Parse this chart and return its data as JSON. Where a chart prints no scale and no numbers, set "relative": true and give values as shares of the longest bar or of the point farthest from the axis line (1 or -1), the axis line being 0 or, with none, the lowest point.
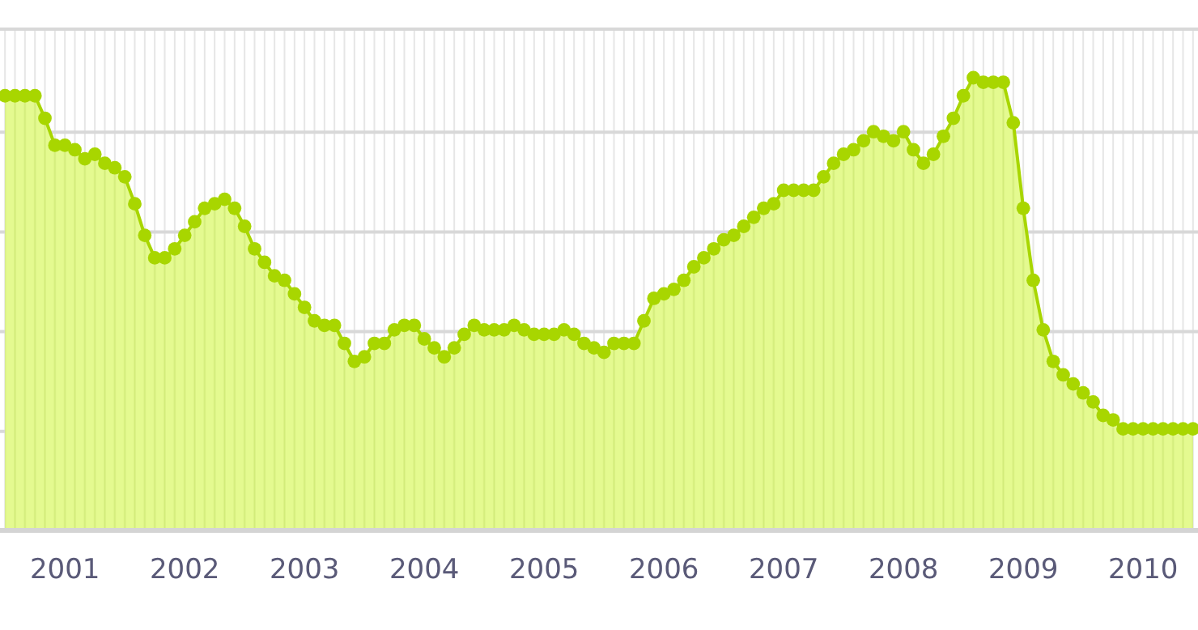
{
  "chart_data": {
    "type": "area",
    "relative": true,
    "grid": true,
    "marker": "circle",
    "categories": [
      null,
      null,
      null,
      null,
      null,
      null,
      "2001",
      null,
      null,
      null,
      null,
      null,
      null,
      null,
      null,
      null,
      null,
      null,
      "2002",
      null,
      null,
      null,
      null,
      null,
      null,
      null,
      null,
      null,
      null,
      null,
      "2003",
      null,
      null,
      null,
      null,
      null,
      null,
      null,
      null,
      null,
      null,
      null,
      "2004",
      null,
      null,
      null,
      null,
      null,
      null,
      null,
      null,
      null,
      null,
      null,
      "2005",
      null,
      null,
      null,
      null,
      null,
      null,
      null,
      null,
      null,
      null,
      null,
      "2006",
      null,
      null,
      null,
      null,
      null,
      null,
      null,
      null,
      null,
      null,
      null,
      "2007",
      null,
      null,
      null,
      null,
      null,
      null,
      null,
      null,
      null,
      null,
      null,
      "2008",
      null,
      null,
      null,
      null,
      null,
      null,
      null,
      null,
      null,
      null,
      null,
      "2009",
      null,
      null,
      null,
      null,
      null,
      null,
      null,
      null,
      null,
      null,
      null,
      "2010",
      null,
      null,
      null,
      null,
      null
    ],
    "series": [
      {
        "color": "#a8d600",
        "values": [
          0.96,
          0.96,
          0.96,
          0.96,
          0.91,
          0.85,
          0.85,
          0.84,
          0.82,
          0.83,
          0.81,
          0.8,
          0.78,
          0.72,
          0.65,
          0.6,
          0.6,
          0.62,
          0.65,
          0.68,
          0.71,
          0.72,
          0.73,
          0.71,
          0.67,
          0.62,
          0.59,
          0.56,
          0.55,
          0.52,
          0.49,
          0.46,
          0.45,
          0.45,
          0.41,
          0.37,
          0.38,
          0.41,
          0.41,
          0.44,
          0.45,
          0.45,
          0.42,
          0.4,
          0.38,
          0.4,
          0.43,
          0.45,
          0.44,
          0.44,
          0.44,
          0.45,
          0.44,
          0.43,
          0.43,
          0.43,
          0.44,
          0.43,
          0.41,
          0.4,
          0.39,
          0.41,
          0.41,
          0.41,
          0.46,
          0.51,
          0.52,
          0.53,
          0.55,
          0.58,
          0.6,
          0.62,
          0.64,
          0.65,
          0.67,
          0.69,
          0.71,
          0.72,
          0.75,
          0.75,
          0.75,
          0.75,
          0.78,
          0.81,
          0.83,
          0.84,
          0.86,
          0.88,
          0.87,
          0.86,
          0.88,
          0.84,
          0.81,
          0.83,
          0.87,
          0.91,
          0.96,
          1.0,
          0.99,
          0.99,
          0.99,
          0.9,
          0.71,
          0.55,
          0.44,
          0.37,
          0.34,
          0.32,
          0.3,
          0.28,
          0.25,
          0.24,
          0.22,
          0.22,
          0.22,
          0.22,
          0.22,
          0.22,
          0.22,
          0.22
        ]
      }
    ]
  }
}
